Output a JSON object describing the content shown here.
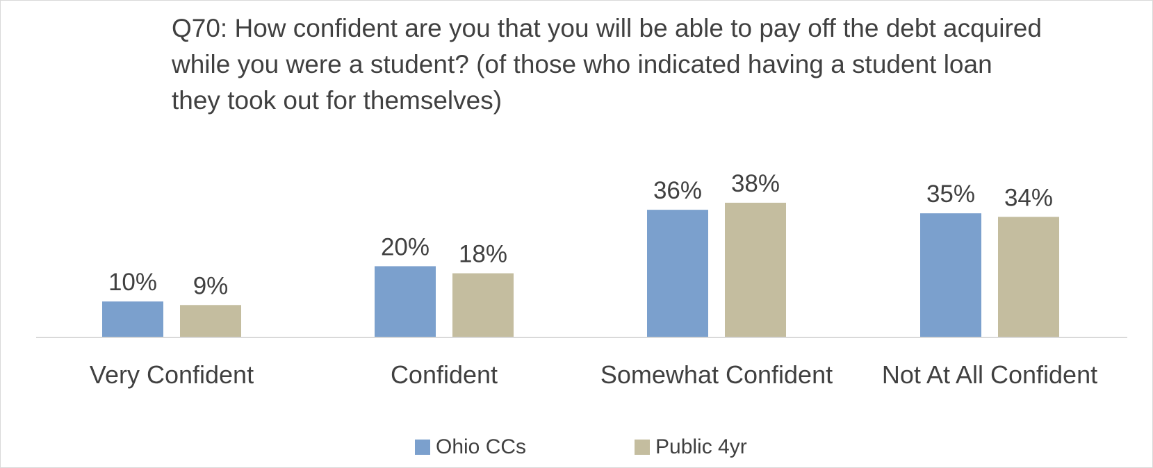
{
  "chart_data": {
    "type": "bar",
    "title": "Q70: How confident are you that you will be able to pay off the debt acquired while you were a student? (of those who indicated having a student loan they took out for themselves)",
    "categories": [
      "Very Confident",
      "Confident",
      "Somewhat Confident",
      "Not At All Confident"
    ],
    "series": [
      {
        "name": "Ohio CCs",
        "color": "#7ba0cd",
        "values": [
          10,
          20,
          36,
          35
        ],
        "labels": [
          "10%",
          "20%",
          "36%",
          "35%"
        ]
      },
      {
        "name": "Public 4yr",
        "color": "#c4bd9f",
        "values": [
          9,
          18,
          38,
          34
        ],
        "labels": [
          "9%",
          "18%",
          "38%",
          "34%"
        ]
      }
    ],
    "unit": "%",
    "ylim": [
      0,
      38
    ],
    "grid": false,
    "legend_position": "bottom",
    "axis_color": "#d9d9d9",
    "text_color": "#404040"
  }
}
